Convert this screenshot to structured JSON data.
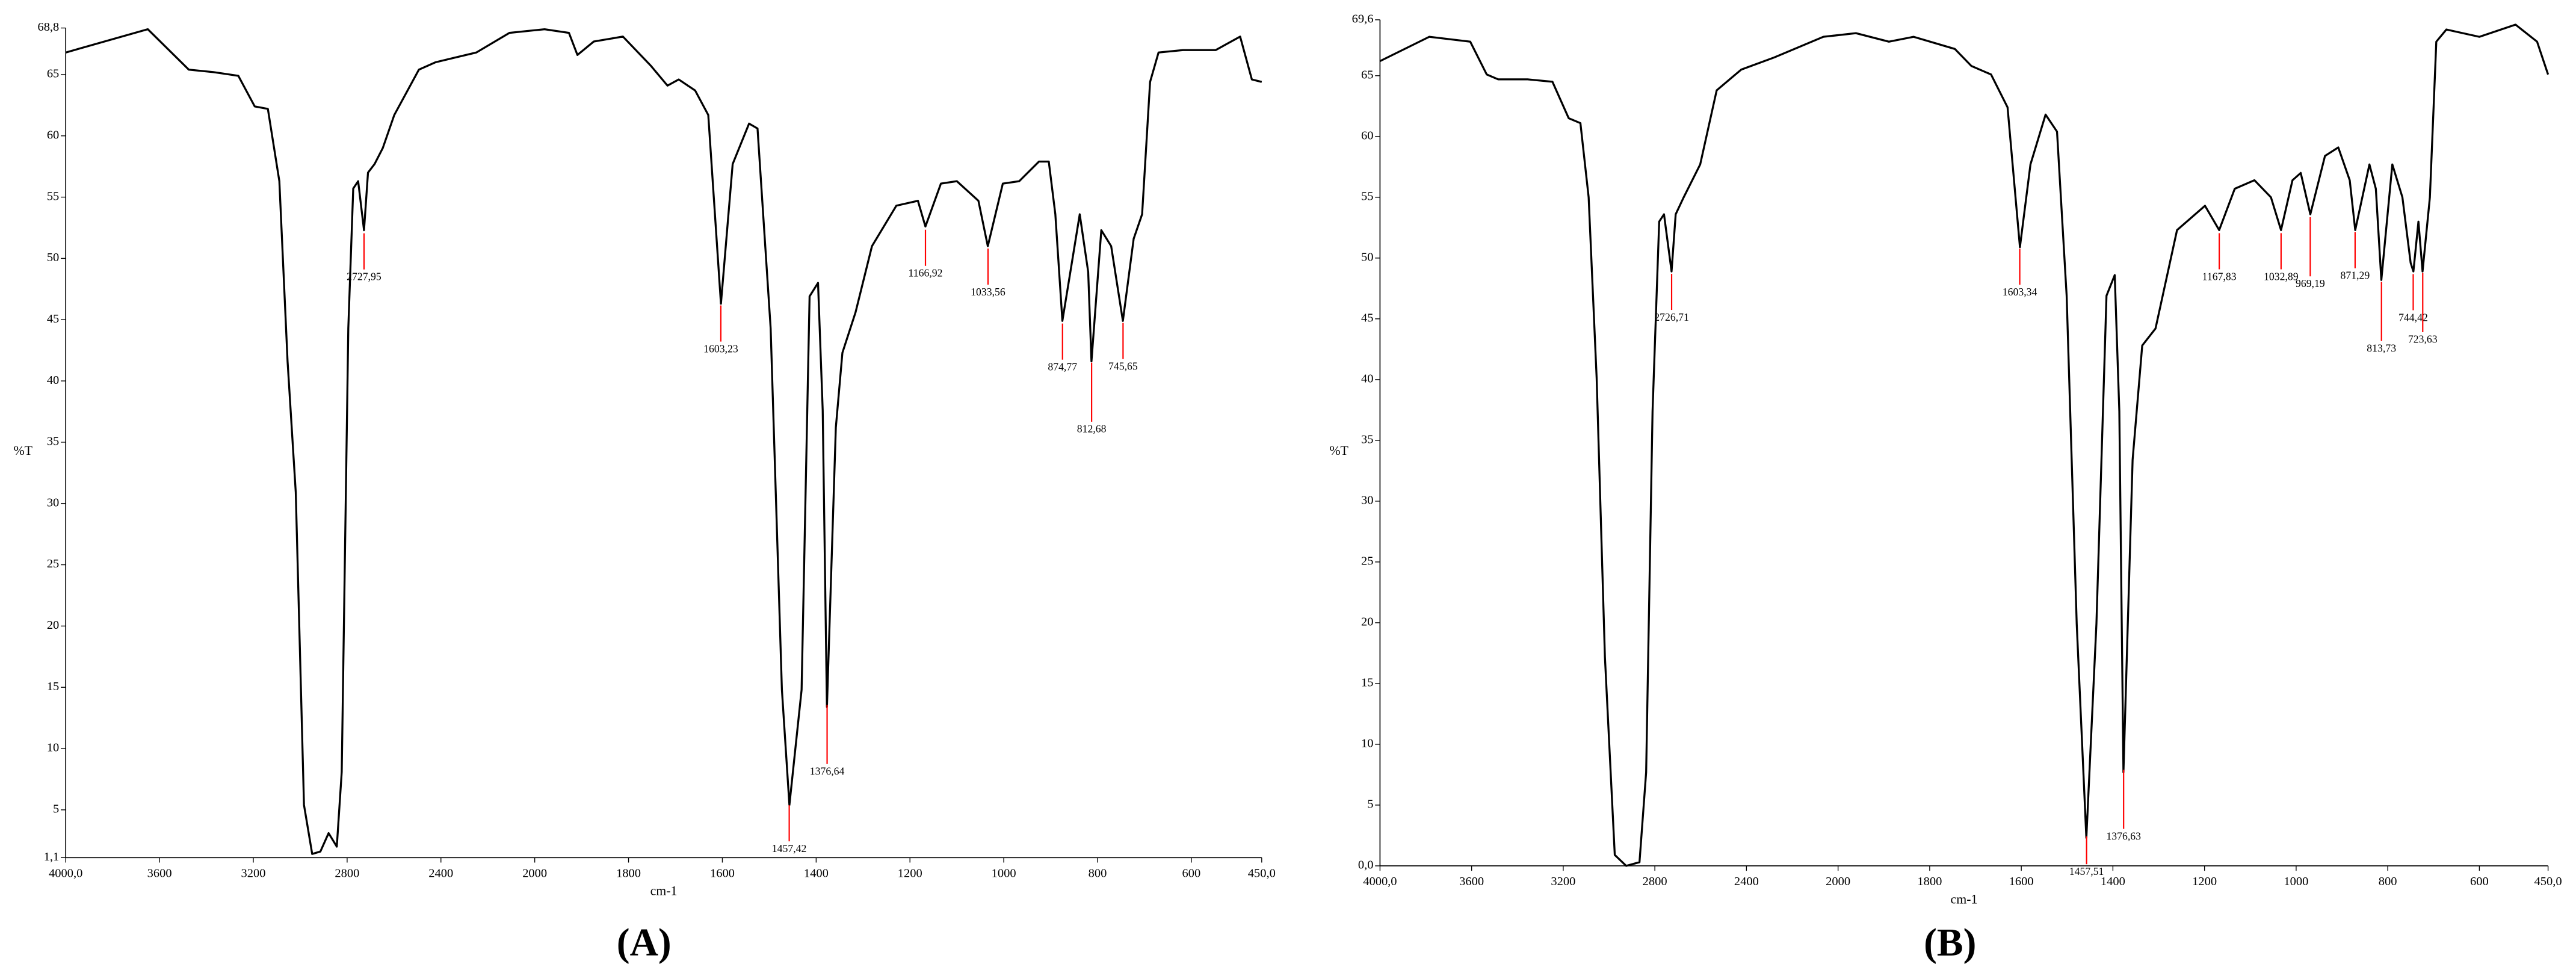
{
  "chart_data": [
    {
      "type": "line",
      "panel_label": "(A)",
      "x_label": "cm-1",
      "y_label": "%T",
      "xlim": [
        4000,
        450
      ],
      "x_scale_break": 2000,
      "x_scale_factor": 2,
      "xticks": [
        {
          "value": 4000,
          "label": "4000,0"
        },
        3600,
        3200,
        2800,
        2400,
        2000,
        1800,
        1600,
        1400,
        1200,
        1000,
        800,
        600,
        {
          "value": 450,
          "label": "450,0"
        }
      ],
      "ylim": [
        1.1,
        68.8
      ],
      "yticks": [
        {
          "value": 1.1,
          "label": "1,1"
        },
        5,
        10,
        15,
        20,
        25,
        30,
        35,
        40,
        45,
        50,
        55,
        60,
        65,
        {
          "value": 68.8,
          "label": "68,8"
        }
      ],
      "series": [
        {
          "color": "#000000",
          "x": [
            4000,
            3650,
            3475,
            3370,
            3264,
            3194,
            3138,
            3089,
            3054,
            3019,
            2984,
            2949,
            2914,
            2879,
            2844,
            2823,
            2795,
            2774,
            2753,
            2728,
            2711,
            2683,
            2648,
            2599,
            2494,
            2424,
            2249,
            2108,
            1979,
            1927,
            1909,
            1874,
            1812,
            1752,
            1717,
            1693,
            1658,
            1630,
            1603,
            1578,
            1543,
            1525,
            1497,
            1473,
            1457,
            1431,
            1414,
            1396,
            1386,
            1377,
            1358,
            1344,
            1316,
            1281,
            1229,
            1183,
            1167,
            1134,
            1100,
            1054,
            1034,
            1002,
            967,
            925,
            904,
            890,
            875,
            855,
            838,
            820,
            813,
            792,
            771,
            746,
            723,
            705,
            688,
            670,
            618,
            548,
            496,
            471,
            450
          ],
          "values": [
            66.8,
            68.7,
            65.4,
            65.2,
            64.9,
            62.4,
            62.2,
            56.3,
            41.6,
            30.9,
            5.4,
            1.4,
            1.6,
            3.1,
            2.0,
            8.1,
            44.3,
            55.7,
            56.3,
            52.3,
            57.0,
            57.7,
            59.0,
            61.7,
            65.4,
            66.0,
            66.8,
            68.4,
            68.7,
            68.4,
            66.6,
            67.7,
            68.1,
            65.7,
            64.1,
            64.6,
            63.7,
            61.7,
            46.3,
            57.7,
            61.0,
            60.6,
            44.3,
            14.8,
            5.4,
            14.8,
            46.9,
            48.0,
            37.6,
            13.4,
            36.2,
            42.3,
            45.6,
            51.0,
            54.3,
            54.7,
            52.6,
            56.1,
            56.3,
            54.7,
            51.0,
            56.1,
            56.3,
            57.9,
            57.9,
            53.6,
            44.9,
            49.6,
            53.6,
            48.9,
            41.6,
            52.3,
            51.0,
            44.9,
            51.6,
            53.6,
            64.4,
            66.8,
            67.0,
            67.0,
            68.1,
            64.6,
            64.4
          ]
        }
      ],
      "peaks": {
        "color": "#ff0000",
        "x": [
          2727.95,
          1603.23,
          1457.42,
          1376.64,
          1166.92,
          1033.56,
          874.77,
          812.68,
          745.65
        ],
        "labels": [
          "2727,95",
          "1603,23",
          "1457,42",
          "1376,64",
          "1166,92",
          "1033,56",
          "874,77",
          "812,68",
          "745,65"
        ]
      }
    },
    {
      "type": "line",
      "panel_label": "(B)",
      "x_label": "cm-1",
      "y_label": "%T",
      "xlim": [
        4000,
        450
      ],
      "x_scale_break": 2000,
      "x_scale_factor": 2,
      "xticks": [
        {
          "value": 4000,
          "label": "4000,0"
        },
        3600,
        3200,
        2800,
        2400,
        2000,
        1800,
        1600,
        1400,
        1200,
        1000,
        800,
        600,
        {
          "value": 450,
          "label": "450,0"
        }
      ],
      "ylim": [
        0,
        69.6
      ],
      "yticks": [
        {
          "value": 0,
          "label": "0,0"
        },
        5,
        10,
        15,
        20,
        25,
        30,
        35,
        40,
        45,
        50,
        55,
        60,
        65,
        {
          "value": 69.6,
          "label": "69,6"
        }
      ],
      "series": [
        {
          "color": "#000000",
          "x": [
            4000,
            3785,
            3606,
            3534,
            3484,
            3355,
            3247,
            3176,
            3125,
            3089,
            3054,
            3018,
            2975,
            2925,
            2867,
            2838,
            2810,
            2781,
            2760,
            2727,
            2709,
            2674,
            2602,
            2530,
            2423,
            2279,
            2064,
            1961,
            1889,
            1835,
            1745,
            1709,
            1666,
            1630,
            1603,
            1580,
            1547,
            1522,
            1501,
            1479,
            1458,
            1436,
            1414,
            1396,
            1386,
            1377,
            1357,
            1336,
            1307,
            1260,
            1199,
            1168,
            1134,
            1091,
            1055,
            1033,
            1008,
            990,
            969,
            937,
            908,
            883,
            871,
            840,
            826,
            814,
            790,
            768,
            750,
            744,
            733,
            724,
            708,
            694,
            672,
            600,
            521,
            474,
            450
          ],
          "values": [
            66.2,
            68.2,
            67.8,
            65.1,
            64.7,
            64.7,
            64.5,
            61.5,
            61.1,
            55.0,
            40.1,
            17.2,
            0.9,
            0,
            0.3,
            7.7,
            37.4,
            53.0,
            53.6,
            48.9,
            53.6,
            55.0,
            57.7,
            63.8,
            65.5,
            66.5,
            68.2,
            68.5,
            67.8,
            68.2,
            67.2,
            65.8,
            65.1,
            62.4,
            50.9,
            57.7,
            61.8,
            60.4,
            46.9,
            19.9,
            2.3,
            19.9,
            46.9,
            48.6,
            37.4,
            7.7,
            33.4,
            42.8,
            44.2,
            52.3,
            54.3,
            52.3,
            55.7,
            56.4,
            55.0,
            52.3,
            56.4,
            57.0,
            53.6,
            58.4,
            59.1,
            56.4,
            52.3,
            57.7,
            55.7,
            48.2,
            57.7,
            55.0,
            49.6,
            48.9,
            53.0,
            48.9,
            55.0,
            67.8,
            68.8,
            68.2,
            69.2,
            67.8,
            65.1
          ]
        }
      ],
      "peaks": {
        "color": "#ff0000",
        "x": [
          2726.71,
          1603.34,
          1457.51,
          1376.63,
          1167.83,
          1032.89,
          969.19,
          871.29,
          813.73,
          744.42,
          723.63
        ],
        "labels": [
          "2726,71",
          "1603,34",
          "1457,51",
          "1376,63",
          "1167,83",
          "1032,89",
          "969,19",
          "871,29",
          "813,73",
          "744,42",
          "723,63"
        ]
      }
    }
  ]
}
